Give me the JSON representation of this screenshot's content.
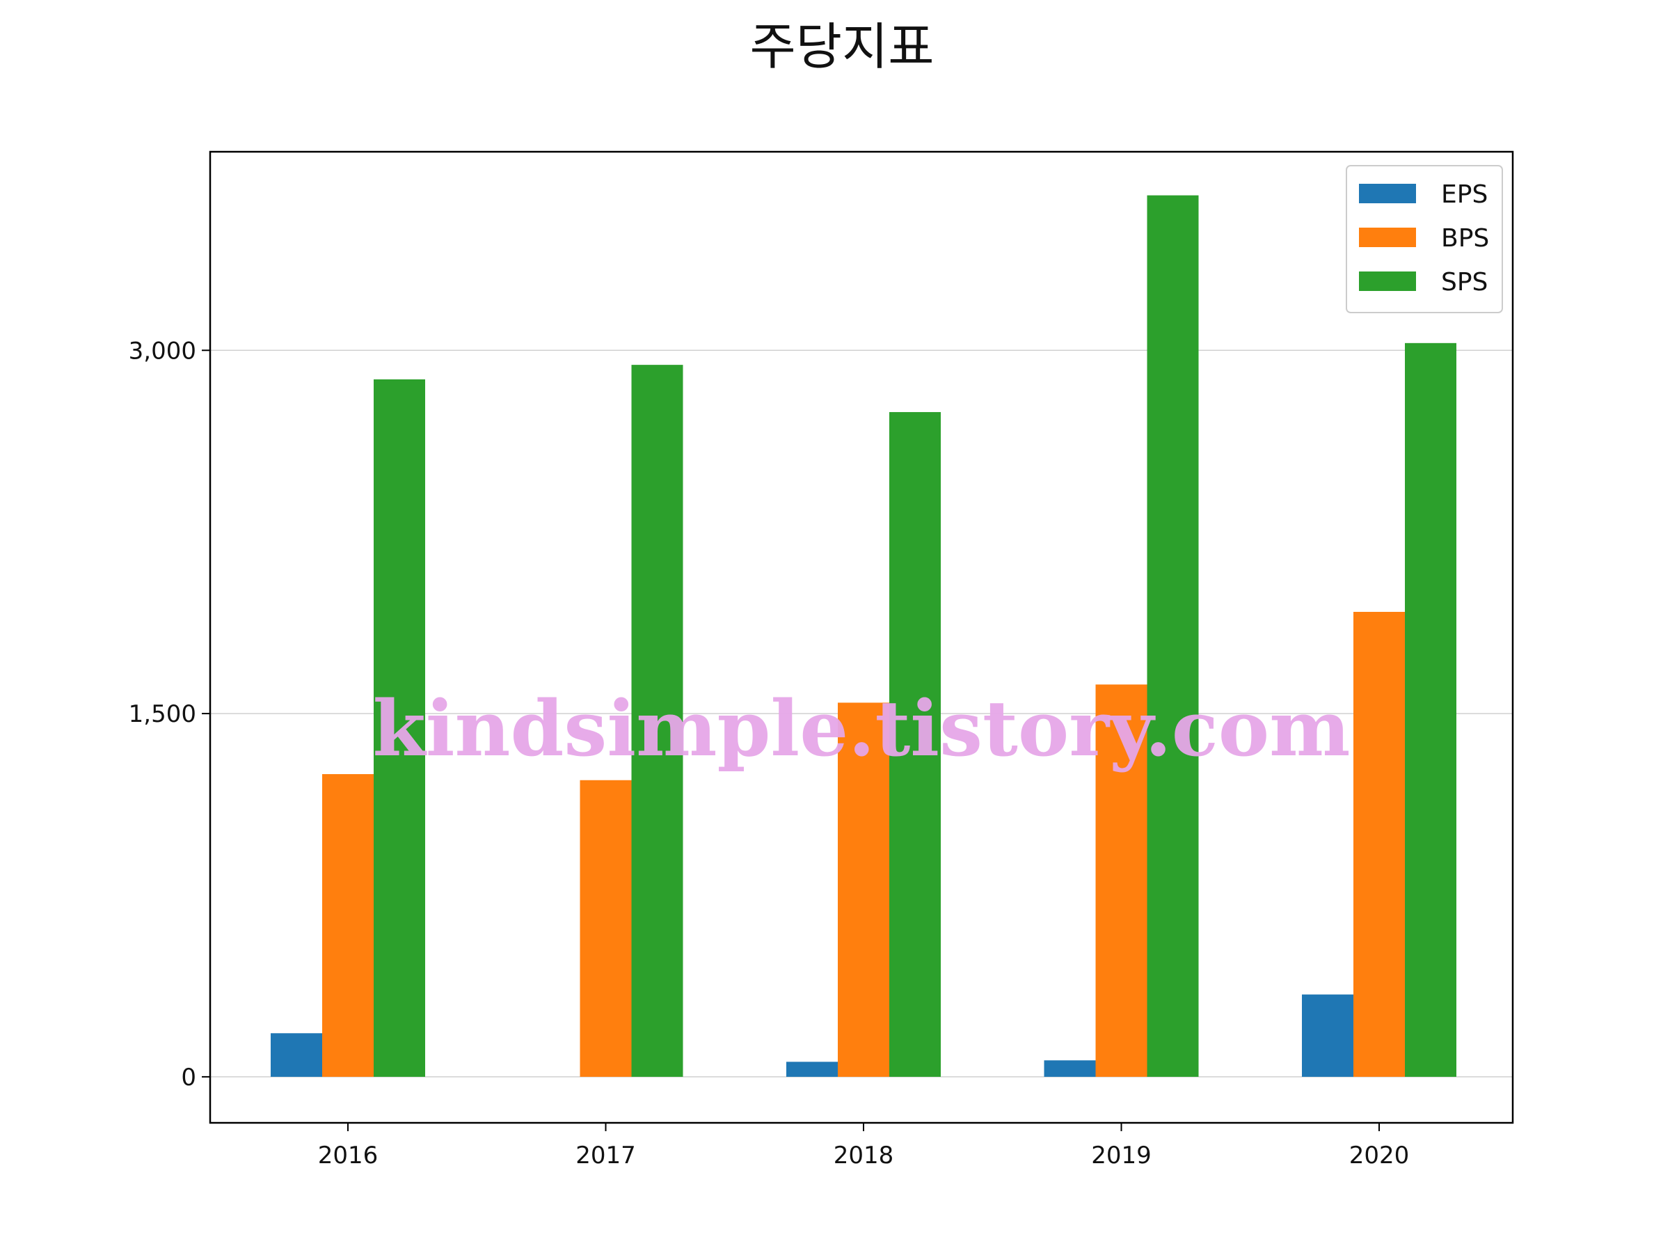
{
  "chart_data": {
    "type": "bar",
    "title": "주당지표",
    "xlabel": "",
    "ylabel": "",
    "categories": [
      "2016",
      "2017",
      "2018",
      "2019",
      "2020"
    ],
    "series": [
      {
        "name": "EPS",
        "color": "#1f77b4",
        "values": [
          180,
          0,
          62,
          68,
          340
        ]
      },
      {
        "name": "BPS",
        "color": "#ff7f0e",
        "values": [
          1250,
          1225,
          1545,
          1620,
          1920
        ]
      },
      {
        "name": "SPS",
        "color": "#2ca02c",
        "values": [
          2880,
          2940,
          2745,
          3640,
          3030
        ]
      }
    ],
    "ylim": [
      -190,
      3820
    ],
    "yticks": [
      0,
      1500,
      3000
    ],
    "ytick_labels": [
      "0",
      "1,500",
      "3,000"
    ],
    "grid": true,
    "legend_position": "top-right",
    "watermark": "kindsimple.tistory.com"
  }
}
